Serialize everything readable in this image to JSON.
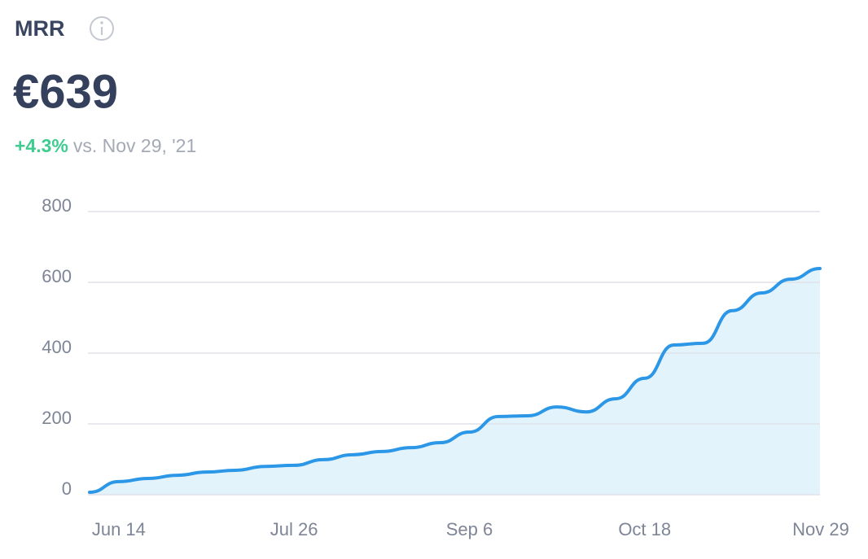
{
  "metric": {
    "label": "MRR",
    "value": "€639",
    "change": "+4.3%",
    "comparison": "vs. Nov 29, '21"
  },
  "chart_data": {
    "type": "area",
    "categories": [
      null,
      "Jun 14",
      null,
      null,
      null,
      null,
      null,
      "Jul 26",
      null,
      null,
      null,
      null,
      null,
      "Sep 6",
      null,
      null,
      null,
      null,
      null,
      "Oct 18",
      null,
      null,
      null,
      null,
      null,
      "Nov 29"
    ],
    "values": [
      7,
      37,
      46,
      55,
      64,
      69,
      80,
      83,
      99,
      113,
      122,
      133,
      147,
      177,
      221,
      223,
      248,
      234,
      271,
      329,
      423,
      428,
      520,
      570,
      609,
      639
    ],
    "color": "#2b97e6",
    "fill": "#e2f3fc",
    "ylim": [
      0,
      800
    ],
    "yticks": [
      0,
      200,
      400,
      600,
      800
    ],
    "grid": true
  }
}
